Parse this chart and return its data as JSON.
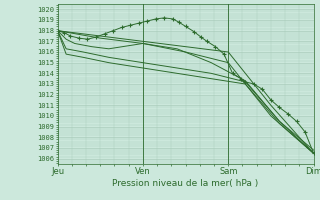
{
  "title": "Pression niveau de la mer( hPa )",
  "bg_color": "#cce8dc",
  "grid_color": "#aaccbb",
  "line_color": "#2d6b2d",
  "ylim": [
    1005.5,
    1020.5
  ],
  "yticks": [
    1006,
    1007,
    1008,
    1009,
    1010,
    1011,
    1012,
    1013,
    1014,
    1015,
    1016,
    1017,
    1018,
    1019,
    1020
  ],
  "xtick_labels": [
    "Jeu",
    "Ven",
    "Sam",
    "Dim"
  ],
  "xtick_positions": [
    0,
    1,
    2,
    3
  ],
  "lines": [
    {
      "x": [
        0,
        0.08,
        0.15,
        0.25,
        0.35,
        0.45,
        0.55,
        0.65,
        0.75,
        0.85,
        0.95,
        1.05,
        1.15,
        1.25,
        1.35,
        1.42,
        1.5,
        1.6,
        1.68,
        1.75,
        1.85,
        1.95,
        2.05,
        2.15,
        2.2,
        2.3,
        2.4,
        2.5,
        2.6,
        2.7,
        2.8,
        2.9,
        3.0
      ],
      "y": [
        1018,
        1017.8,
        1017.5,
        1017.3,
        1017.2,
        1017.4,
        1017.7,
        1018.0,
        1018.3,
        1018.5,
        1018.7,
        1018.9,
        1019.1,
        1019.2,
        1019.1,
        1018.8,
        1018.4,
        1017.9,
        1017.4,
        1017.0,
        1016.5,
        1015.8,
        1014.0,
        1013.5,
        1013.2,
        1013.0,
        1012.5,
        1011.5,
        1010.8,
        1010.2,
        1009.5,
        1008.5,
        1006.5
      ],
      "marker": "+"
    },
    {
      "x": [
        0,
        0.5,
        1.0,
        1.5,
        2.0,
        2.5,
        3.0
      ],
      "y": [
        1018,
        1017.5,
        1017.0,
        1016.5,
        1016.0,
        1011.0,
        1006.5
      ],
      "marker": null
    },
    {
      "x": [
        0,
        0.5,
        1.0,
        1.5,
        2.0,
        2.5,
        3.0
      ],
      "y": [
        1018,
        1017.3,
        1016.8,
        1016.0,
        1015.0,
        1010.0,
        1006.5
      ],
      "marker": null
    },
    {
      "x": [
        0,
        0.1,
        0.2,
        0.4,
        0.6,
        1.0,
        1.4,
        1.8,
        2.2,
        2.6,
        3.0
      ],
      "y": [
        1018,
        1017.2,
        1016.8,
        1016.5,
        1016.3,
        1016.8,
        1016.3,
        1015.0,
        1013.3,
        1009.5,
        1006.8
      ],
      "marker": null
    },
    {
      "x": [
        0,
        0.1,
        0.3,
        0.6,
        1.0,
        1.4,
        1.8,
        2.2,
        2.6,
        3.0
      ],
      "y": [
        1018,
        1016.3,
        1016.0,
        1015.5,
        1015.0,
        1014.5,
        1014.0,
        1013.2,
        1009.5,
        1006.5
      ],
      "marker": null
    },
    {
      "x": [
        0,
        0.1,
        0.3,
        0.6,
        1.0,
        1.4,
        1.8,
        2.2,
        2.6,
        3.0
      ],
      "y": [
        1018,
        1015.8,
        1015.5,
        1015.0,
        1014.5,
        1014.0,
        1013.5,
        1013.0,
        1009.3,
        1006.5
      ],
      "marker": null
    }
  ]
}
